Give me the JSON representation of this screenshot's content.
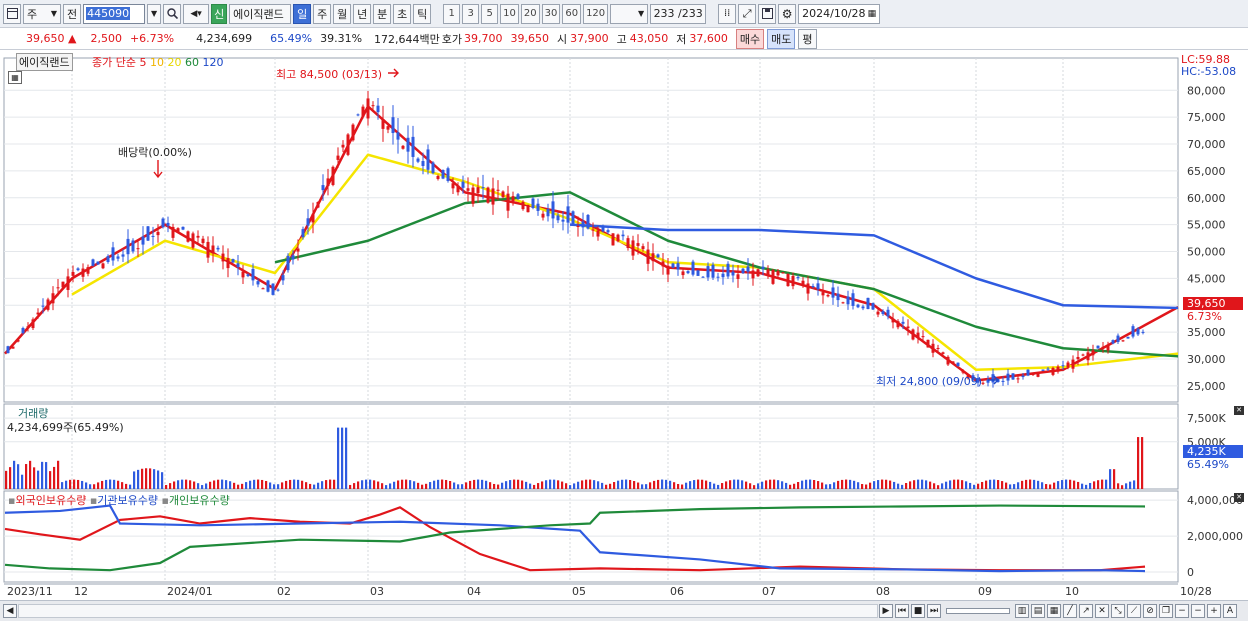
{
  "toolbar": {
    "type_select": "주",
    "prev_label": "전",
    "stock_code": "445090",
    "stock_badge": "신",
    "stock_name": "에이직랜드",
    "periods": [
      "일",
      "주",
      "월",
      "년",
      "분",
      "초",
      "틱"
    ],
    "active_period": "일",
    "intervals": [
      "1",
      "3",
      "5",
      "10",
      "20",
      "30",
      "60",
      "120"
    ],
    "count_display": "233 /233",
    "date": "2024/10/28"
  },
  "quote": {
    "price": "39,650",
    "change": "2,500",
    "change_pct": "+6.73%",
    "volume": "4,234,699",
    "volume_ratio": "65.49%",
    "turnover": "39.31%",
    "amount": "172,644백만",
    "ask_label": "호가",
    "ask": "39,700",
    "bid": "39,650",
    "open_label": "시",
    "open": "37,900",
    "high_label": "고",
    "high": "43,050",
    "low_label": "저",
    "low": "37,600",
    "buy_button": "매수",
    "sell_button": "매도",
    "eval_button": "평"
  },
  "chart": {
    "stock_tag": "에이직랜드",
    "ma_label": "종가 단순",
    "ma_periods": [
      "5",
      "10",
      "20",
      "60",
      "120"
    ],
    "ma_colors": [
      "#e0161b",
      "#ff9a1a",
      "#f5e500",
      "#1f8a3a",
      "#2f5be0"
    ],
    "lc": "LC:59.88",
    "hc": "HC:-53.08",
    "high_annotation": "최고 84,500 (03/13)",
    "low_annotation": "최저 24,800 (09/09)",
    "dividend_annotation": "배당락(0.00%)",
    "current_price_tag": "39,650",
    "current_pct_tag": "6.73%",
    "volume_title": "거래량",
    "volume_value": "4,234,699주(65.49%)",
    "volume_tag": "4,235K",
    "volume_pct_tag": "65.49%",
    "holdings_labels": [
      "외국인보유수량",
      "기관보유수량",
      "개인보유수량"
    ],
    "holdings_colors": [
      "#e0161b",
      "#2f5be0",
      "#1f8a3a"
    ],
    "price_axis": [
      "80,000",
      "75,000",
      "70,000",
      "65,000",
      "60,000",
      "55,000",
      "50,000",
      "45,000",
      "40,000",
      "35,000",
      "30,000",
      "25,000"
    ],
    "volume_axis": [
      "7,500K",
      "5,000K"
    ],
    "holdings_axis": [
      "4,000,000",
      "2,000,000",
      "0"
    ],
    "x_axis": [
      "2023/11",
      "12",
      "2024/01",
      "02",
      "03",
      "04",
      "05",
      "06",
      "07",
      "08",
      "09",
      "10",
      "10/28"
    ]
  },
  "chart_data": [
    {
      "type": "line",
      "title": "",
      "ylabel": "",
      "ylim": [
        22000,
        86000
      ],
      "x": [
        "2023/11",
        "12",
        "2024/01",
        "02",
        "03",
        "04",
        "05",
        "06",
        "07",
        "08",
        "09",
        "10",
        "10/28"
      ],
      "series": [
        {
          "name": "5",
          "values": [
            31000,
            45000,
            55000,
            43000,
            77000,
            61000,
            57000,
            47000,
            46000,
            40000,
            26000,
            28000,
            39650
          ]
        },
        {
          "name": "20",
          "values": [
            null,
            42000,
            52000,
            46000,
            68000,
            63000,
            56000,
            48000,
            47000,
            43000,
            28000,
            28500,
            31000
          ]
        },
        {
          "name": "60",
          "values": [
            null,
            null,
            null,
            48000,
            52000,
            59000,
            61000,
            52000,
            47000,
            43000,
            36000,
            32000,
            30500
          ]
        },
        {
          "name": "120",
          "values": [
            null,
            null,
            null,
            null,
            null,
            null,
            55000,
            54000,
            54000,
            53000,
            45000,
            40000,
            39500
          ]
        }
      ]
    }
  ]
}
